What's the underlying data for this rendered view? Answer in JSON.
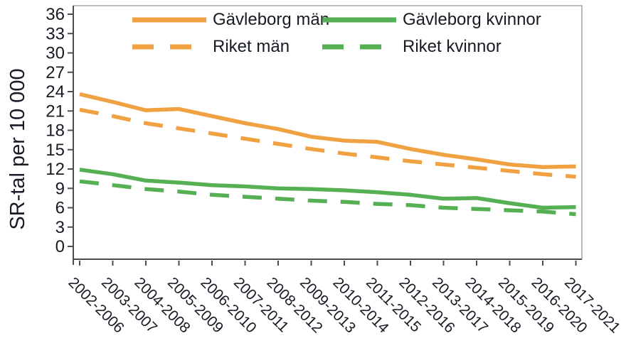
{
  "chart_data": {
    "type": "line",
    "title": "",
    "xlabel": "",
    "ylabel": "SR-tal per 10 000",
    "ylim": [
      0,
      36
    ],
    "ytick_step": 3,
    "yticks": [
      0,
      3,
      6,
      9,
      12,
      15,
      18,
      21,
      24,
      27,
      30,
      33,
      36
    ],
    "grid": false,
    "legend_position": "top-inside",
    "categories": [
      "2002-2006",
      "2003-2007",
      "2004-2008",
      "2005-2009",
      "2006-2010",
      "2007-2011",
      "2008-2012",
      "2009-2013",
      "2010-2014",
      "2011-2015",
      "2012-2016",
      "2013-2017",
      "2014-2018",
      "2015-2019",
      "2016-2020",
      "2017-2021"
    ],
    "series": [
      {
        "name": "Gävleborg män",
        "style": "solid",
        "color": "#F0A142",
        "values": [
          23.6,
          22.4,
          21.1,
          21.3,
          20.2,
          19.1,
          18.2,
          17.0,
          16.4,
          16.2,
          15.1,
          14.2,
          13.5,
          12.7,
          12.3,
          12.4
        ]
      },
      {
        "name": "Riket män",
        "style": "dashed",
        "color": "#F0A142",
        "values": [
          21.2,
          20.2,
          19.1,
          18.3,
          17.5,
          16.7,
          15.9,
          15.1,
          14.4,
          13.8,
          13.2,
          12.7,
          12.2,
          11.7,
          11.2,
          10.8
        ]
      },
      {
        "name": "Gävleborg kvinnor",
        "style": "solid",
        "color": "#55AF53",
        "values": [
          11.9,
          11.2,
          10.2,
          9.9,
          9.5,
          9.3,
          9.0,
          8.9,
          8.7,
          8.4,
          8.0,
          7.4,
          7.5,
          6.7,
          6.0,
          6.1
        ]
      },
      {
        "name": "Riket kvinnor",
        "style": "dashed",
        "color": "#55AF53",
        "values": [
          10.1,
          9.5,
          8.9,
          8.5,
          8.0,
          7.7,
          7.4,
          7.1,
          6.9,
          6.6,
          6.4,
          6.0,
          5.8,
          5.6,
          5.4,
          5.0
        ]
      }
    ],
    "colors": {
      "orange": "#F0A142",
      "green": "#55AF53",
      "text": "#171B24",
      "axis": "#4C4C4E",
      "frame": "#A9A9A9"
    }
  }
}
